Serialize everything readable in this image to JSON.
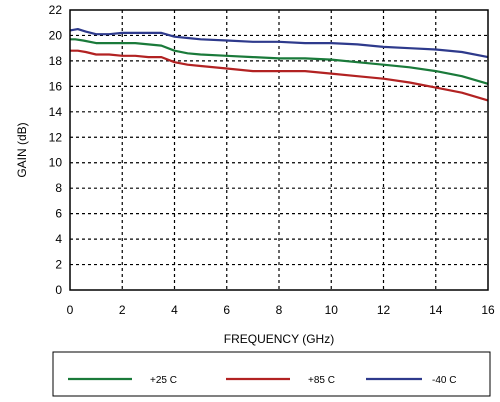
{
  "chart_data": {
    "type": "line",
    "xlabel": "FREQUENCY (GHz)",
    "ylabel": "GAIN (dB)",
    "xlim": [
      0,
      16
    ],
    "ylim": [
      0,
      22
    ],
    "xticks": [
      0,
      2,
      4,
      6,
      8,
      10,
      12,
      14,
      16
    ],
    "yticks": [
      0,
      2,
      4,
      6,
      8,
      10,
      12,
      14,
      16,
      18,
      20,
      22
    ],
    "grid": true,
    "legend_position": "bottom",
    "series": [
      {
        "name": "+25 C",
        "color": "#1a7a3a",
        "x": [
          0,
          0.2,
          0.5,
          1,
          1.5,
          2,
          2.5,
          3,
          3.5,
          4,
          4.5,
          5,
          6,
          7,
          8,
          9,
          10,
          11,
          12,
          13,
          14,
          15,
          16
        ],
        "y": [
          19.7,
          19.7,
          19.6,
          19.4,
          19.4,
          19.4,
          19.4,
          19.3,
          19.2,
          18.8,
          18.6,
          18.5,
          18.4,
          18.3,
          18.2,
          18.2,
          18.1,
          17.9,
          17.7,
          17.5,
          17.2,
          16.8,
          16.2
        ]
      },
      {
        "name": "+85 C",
        "color": "#b22222",
        "x": [
          0,
          0.3,
          0.6,
          1,
          1.5,
          2,
          2.5,
          3,
          3.5,
          4,
          4.5,
          5,
          6,
          7,
          8,
          9,
          10,
          11,
          12,
          13,
          14,
          15,
          16
        ],
        "y": [
          18.8,
          18.8,
          18.7,
          18.5,
          18.5,
          18.4,
          18.4,
          18.3,
          18.3,
          17.9,
          17.7,
          17.6,
          17.4,
          17.2,
          17.2,
          17.2,
          17.0,
          16.8,
          16.6,
          16.3,
          15.9,
          15.5,
          14.9
        ]
      },
      {
        "name": "-40 C",
        "color": "#2e3a8c",
        "x": [
          0,
          0.3,
          0.6,
          1,
          1.5,
          2,
          2.5,
          3,
          3.5,
          4,
          4.5,
          5,
          6,
          7,
          8,
          9,
          10,
          11,
          12,
          13,
          14,
          15,
          16
        ],
        "y": [
          20.4,
          20.5,
          20.3,
          20.1,
          20.1,
          20.2,
          20.2,
          20.2,
          20.2,
          19.9,
          19.8,
          19.7,
          19.6,
          19.5,
          19.5,
          19.4,
          19.4,
          19.3,
          19.1,
          19.0,
          18.9,
          18.7,
          18.3
        ]
      }
    ]
  }
}
